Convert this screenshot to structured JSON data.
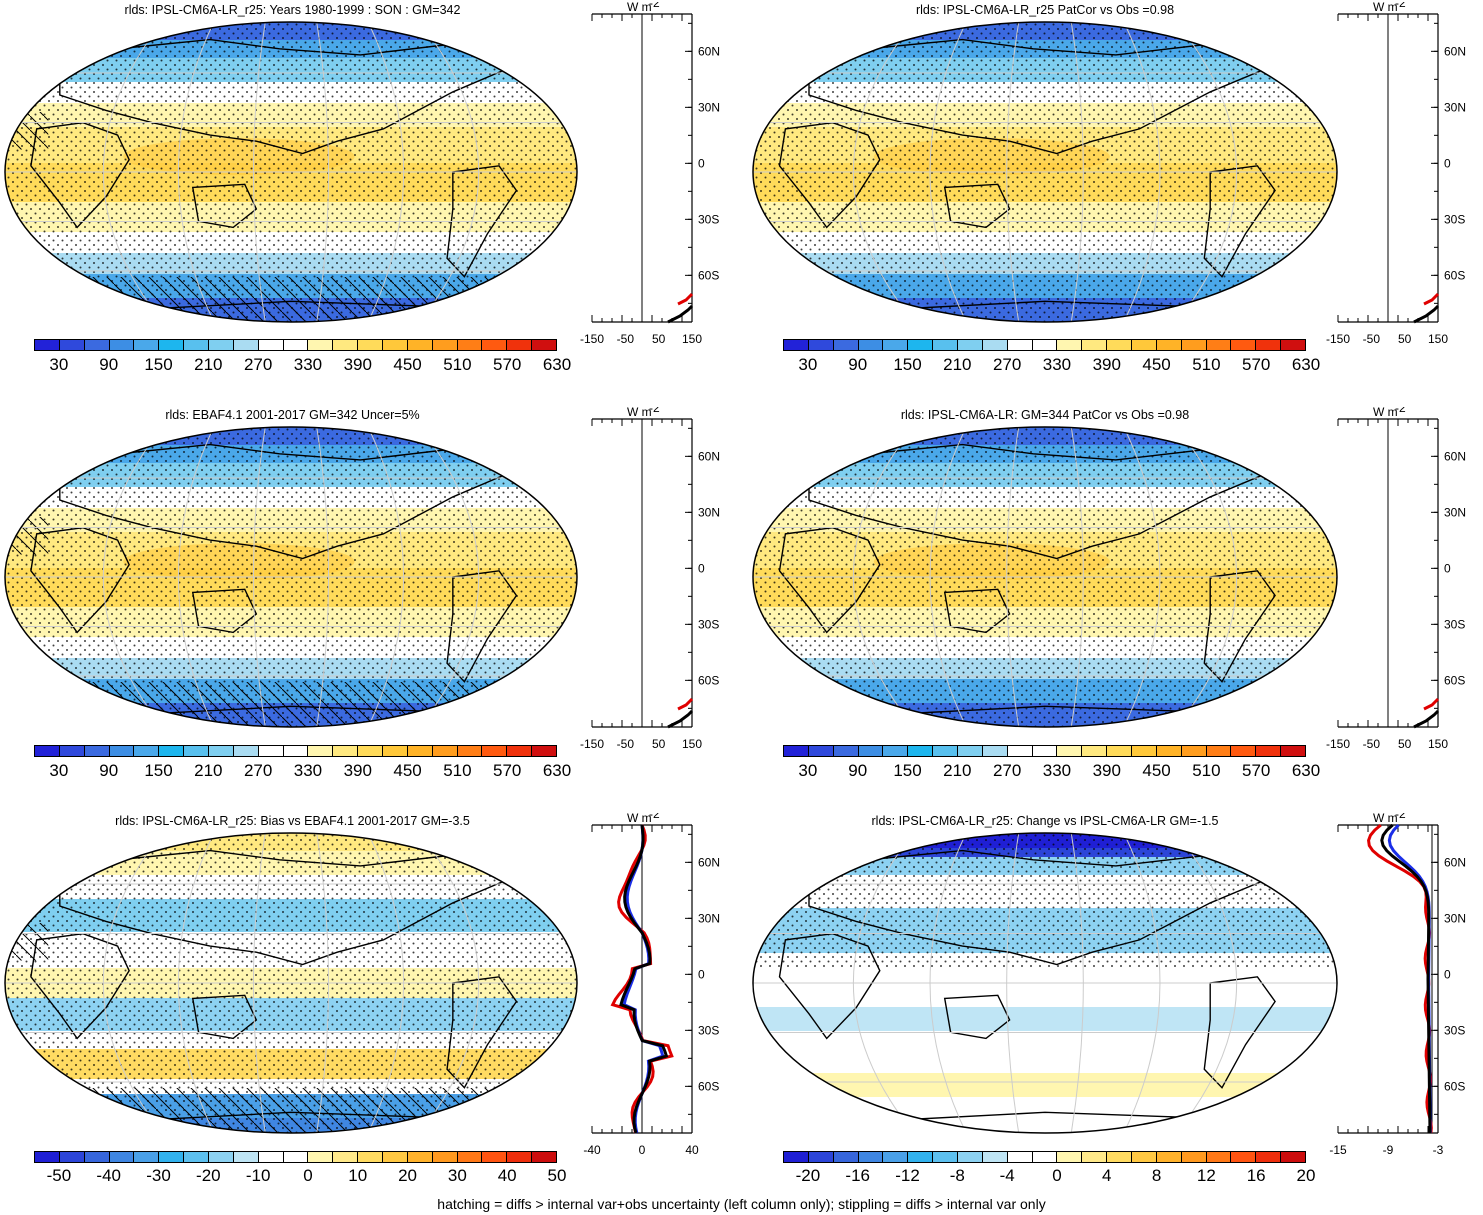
{
  "panels": [
    {
      "title": "rlds: IPSL-CM6A-LR_r25: Years 1980-1999 : SON : GM=342",
      "kind": "abs",
      "hatch": true,
      "colorbar_labels": [
        "30",
        "90",
        "150",
        "210",
        "270",
        "330",
        "390",
        "450",
        "510",
        "570",
        "630"
      ],
      "profile_xlabels": [
        "-150",
        "-50",
        "50",
        "150"
      ]
    },
    {
      "title": "rlds: IPSL-CM6A-LR_r25 PatCor vs Obs =0.98",
      "kind": "abs",
      "hatch": false,
      "colorbar_labels": [
        "30",
        "90",
        "150",
        "210",
        "270",
        "330",
        "390",
        "450",
        "510",
        "570",
        "630"
      ],
      "profile_xlabels": [
        "-150",
        "-50",
        "50",
        "150"
      ]
    },
    {
      "title": "rlds: EBAF4.1 2001-2017 GM=342 Uncer=5%",
      "kind": "abs",
      "hatch": true,
      "colorbar_labels": [
        "30",
        "90",
        "150",
        "210",
        "270",
        "330",
        "390",
        "450",
        "510",
        "570",
        "630"
      ],
      "profile_xlabels": [
        "-150",
        "-50",
        "50",
        "150"
      ]
    },
    {
      "title": "rlds: IPSL-CM6A-LR: GM=344 PatCor vs Obs =0.98",
      "kind": "abs",
      "hatch": false,
      "colorbar_labels": [
        "30",
        "90",
        "150",
        "210",
        "270",
        "330",
        "390",
        "450",
        "510",
        "570",
        "630"
      ],
      "profile_xlabels": [
        "-150",
        "-50",
        "50",
        "150"
      ]
    },
    {
      "title": "rlds: IPSL-CM6A-LR_r25: Bias vs EBAF4.1 2001-2017  GM=-3.5",
      "kind": "bias",
      "hatch": true,
      "colorbar_labels": [
        "-50",
        "-40",
        "-30",
        "-20",
        "-10",
        "0",
        "10",
        "20",
        "30",
        "40",
        "50"
      ],
      "profile_xlabels": [
        "-40",
        "0",
        "40"
      ]
    },
    {
      "title": "rlds: IPSL-CM6A-LR_r25: Change vs IPSL-CM6A-LR GM=-1.5",
      "kind": "change",
      "hatch": false,
      "colorbar_labels": [
        "-20",
        "-16",
        "-12",
        "-8",
        "-4",
        "0",
        "4",
        "8",
        "12",
        "16",
        "20"
      ],
      "profile_xlabels": [
        "-15",
        "-9",
        "-3"
      ]
    }
  ],
  "lat_labels": [
    "60N",
    "30N",
    "0",
    "30S",
    "60S"
  ],
  "profile_unit": "W m",
  "profile_unit_sup": "-2",
  "palettes": {
    "abs": [
      "#2222d8",
      "#2f49dc",
      "#3b6ae0",
      "#3d8ee4",
      "#4aa8ea",
      "#1db6ee",
      "#58c0ee",
      "#7fcff0",
      "#aadcf2",
      "#ffffff",
      "#ffffff",
      "#fff6b0",
      "#ffe980",
      "#ffdb5a",
      "#ffc83a",
      "#ffb327",
      "#ff9d1e",
      "#ff7e16",
      "#ff5a10",
      "#f0320c",
      "#d00f0f"
    ],
    "div": [
      "#1f1fd4",
      "#2c45d8",
      "#3766dc",
      "#3f86e2",
      "#4aa0e8",
      "#32b2ee",
      "#5dc0ef",
      "#8dd2f2",
      "#bfe5f5",
      "#ffffff",
      "#ffffff",
      "#fff6b0",
      "#ffe98a",
      "#ffdb62",
      "#ffc843",
      "#ffb22c",
      "#ff991f",
      "#ff7817",
      "#ff5411",
      "#ee2e0c",
      "#cc0d0d"
    ]
  },
  "footer": "hatching = diffs > internal var+obs uncertainty (left column only); stippling = diffs > internal var only"
}
